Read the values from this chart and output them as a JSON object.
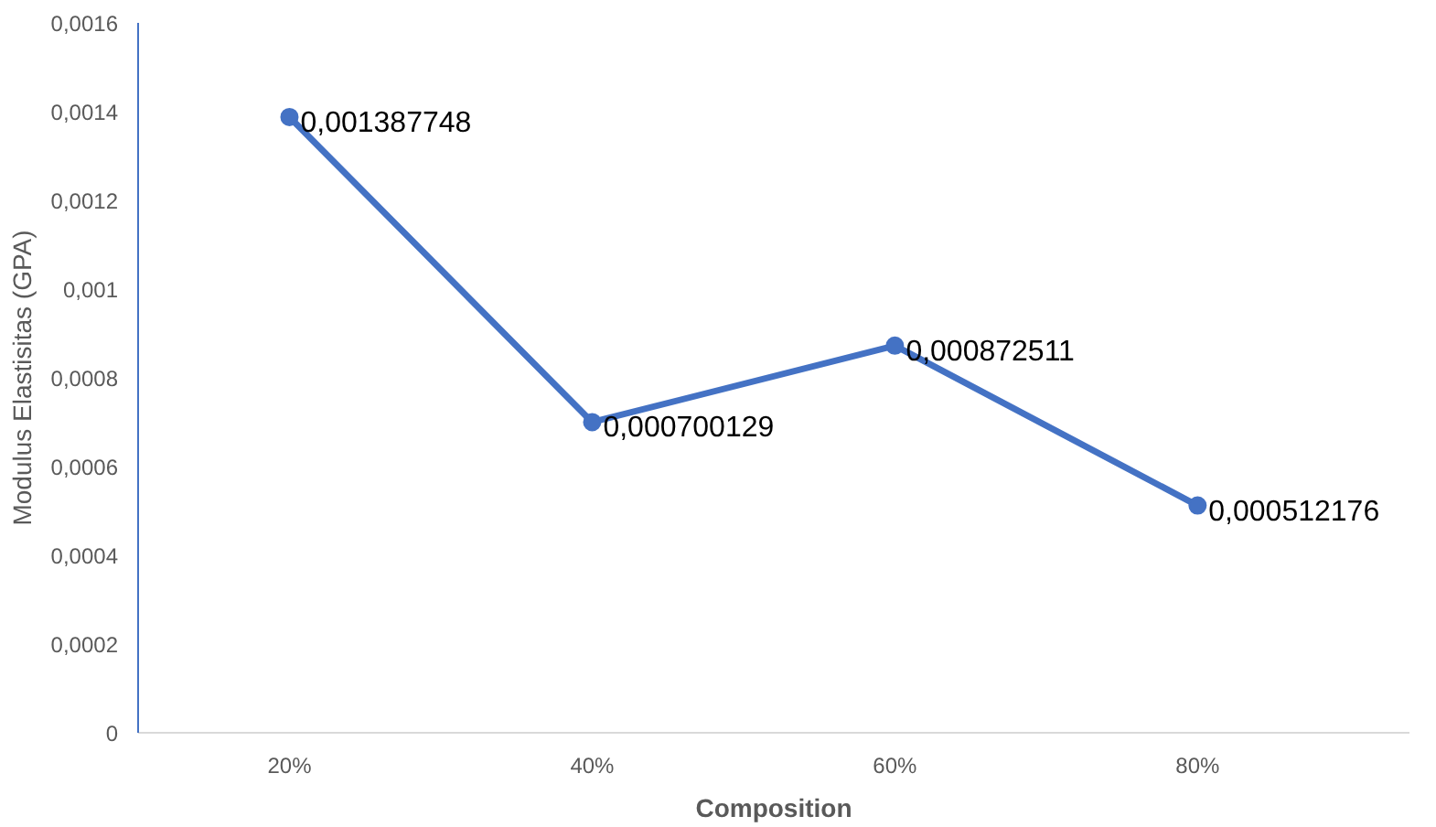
{
  "chart_data": {
    "type": "line",
    "xlabel": "Composition",
    "ylabel": "Modulus Elastisitas (GPA)",
    "categories": [
      "20%",
      "40%",
      "60%",
      "80%"
    ],
    "series": [
      {
        "color": "#4472c4",
        "values": [
          0.001387748,
          0.000700129,
          0.000872511,
          0.000512176
        ],
        "value_labels": [
          "0,001387748",
          "0,000700129",
          "0,000872511",
          "0,000512176"
        ]
      }
    ],
    "ylim": [
      0,
      0.0016
    ],
    "yticks": [
      {
        "value": 0,
        "label": "0"
      },
      {
        "value": 0.0002,
        "label": "0,0002"
      },
      {
        "value": 0.0004,
        "label": "0,0004"
      },
      {
        "value": 0.0006,
        "label": "0,0006"
      },
      {
        "value": 0.0008,
        "label": "0,0008"
      },
      {
        "value": 0.001,
        "label": "0,001"
      },
      {
        "value": 0.0012,
        "label": "0,0012"
      },
      {
        "value": 0.0014,
        "label": "0,0014"
      },
      {
        "value": 0.0016,
        "label": "0,0016"
      }
    ],
    "grid": false,
    "marker": "circle",
    "line_style": "solid"
  }
}
